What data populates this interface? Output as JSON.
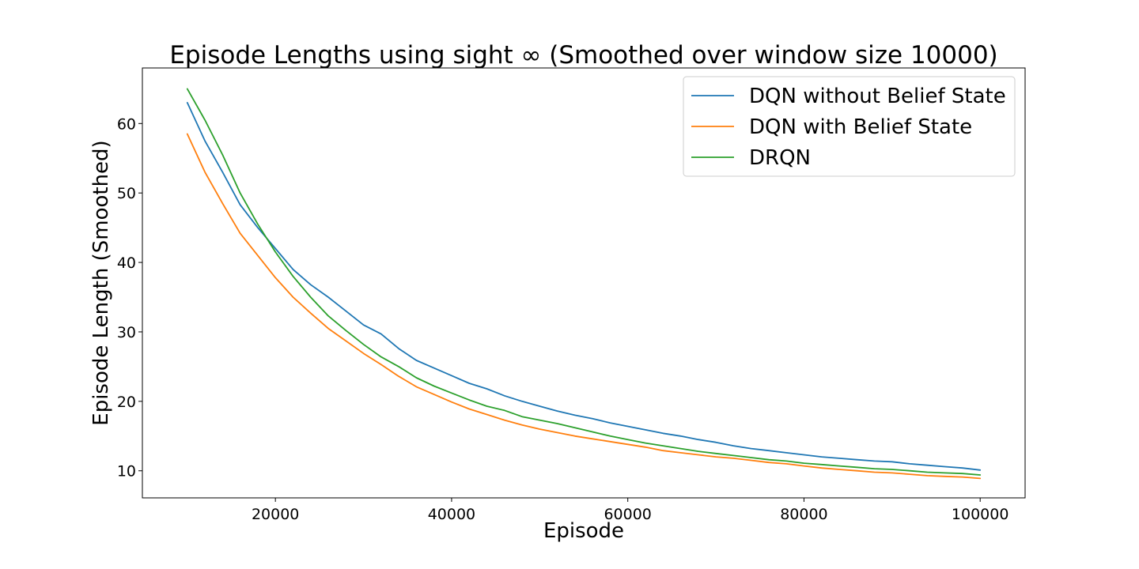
{
  "chart_data": {
    "type": "line",
    "title": "Episode Lengths using sight ∞ (Smoothed over window size 10000)",
    "xlabel": "Episode",
    "ylabel": "Episode Length (Smoothed)",
    "xlim": [
      4900,
      105100
    ],
    "ylim": [
      6.1,
      68.0
    ],
    "xticks": [
      20000,
      40000,
      60000,
      80000,
      100000
    ],
    "yticks": [
      10,
      20,
      30,
      40,
      50,
      60
    ],
    "grid": false,
    "legend_position": "top-right",
    "x": [
      10000,
      12000,
      14000,
      16000,
      18000,
      20000,
      22000,
      24000,
      26000,
      28000,
      30000,
      32000,
      34000,
      36000,
      38000,
      40000,
      42000,
      44000,
      46000,
      48000,
      50000,
      52000,
      54000,
      56000,
      58000,
      60000,
      62000,
      64000,
      66000,
      68000,
      70000,
      72000,
      74000,
      76000,
      78000,
      80000,
      82000,
      84000,
      86000,
      88000,
      90000,
      92000,
      94000,
      96000,
      98000,
      100000
    ],
    "series": [
      {
        "name": "DQN without Belief State",
        "color": "#1f77b4",
        "values": [
          63.0,
          57.5,
          53.0,
          48.3,
          45.0,
          42.0,
          39.0,
          36.8,
          35.0,
          33.0,
          31.0,
          29.7,
          27.6,
          25.9,
          24.8,
          23.7,
          22.6,
          21.8,
          20.8,
          20.0,
          19.3,
          18.6,
          18.0,
          17.5,
          16.9,
          16.4,
          15.9,
          15.4,
          15.0,
          14.5,
          14.1,
          13.6,
          13.2,
          12.9,
          12.6,
          12.3,
          12.0,
          11.8,
          11.6,
          11.4,
          11.3,
          11.0,
          10.8,
          10.6,
          10.4,
          10.1
        ]
      },
      {
        "name": "DQN with Belief State",
        "color": "#ff7f0e",
        "values": [
          58.5,
          53.0,
          48.5,
          44.2,
          41.0,
          37.8,
          35.0,
          32.7,
          30.5,
          28.7,
          26.9,
          25.3,
          23.6,
          22.1,
          21.0,
          19.9,
          18.9,
          18.1,
          17.3,
          16.6,
          16.0,
          15.5,
          15.0,
          14.6,
          14.2,
          13.8,
          13.4,
          12.9,
          12.6,
          12.3,
          12.0,
          11.8,
          11.5,
          11.2,
          11.0,
          10.7,
          10.4,
          10.2,
          10.0,
          9.8,
          9.7,
          9.5,
          9.3,
          9.2,
          9.1,
          8.9
        ]
      },
      {
        "name": "DRQN",
        "color": "#2ca02c",
        "values": [
          65.0,
          60.5,
          55.5,
          50.0,
          45.5,
          41.5,
          38.0,
          35.0,
          32.3,
          30.2,
          28.2,
          26.4,
          25.0,
          23.4,
          22.2,
          21.2,
          20.2,
          19.3,
          18.7,
          17.8,
          17.3,
          16.8,
          16.2,
          15.6,
          15.0,
          14.5,
          14.0,
          13.6,
          13.2,
          12.8,
          12.5,
          12.2,
          11.9,
          11.6,
          11.4,
          11.1,
          10.9,
          10.7,
          10.5,
          10.3,
          10.2,
          10.0,
          9.8,
          9.7,
          9.6,
          9.4
        ]
      }
    ]
  }
}
